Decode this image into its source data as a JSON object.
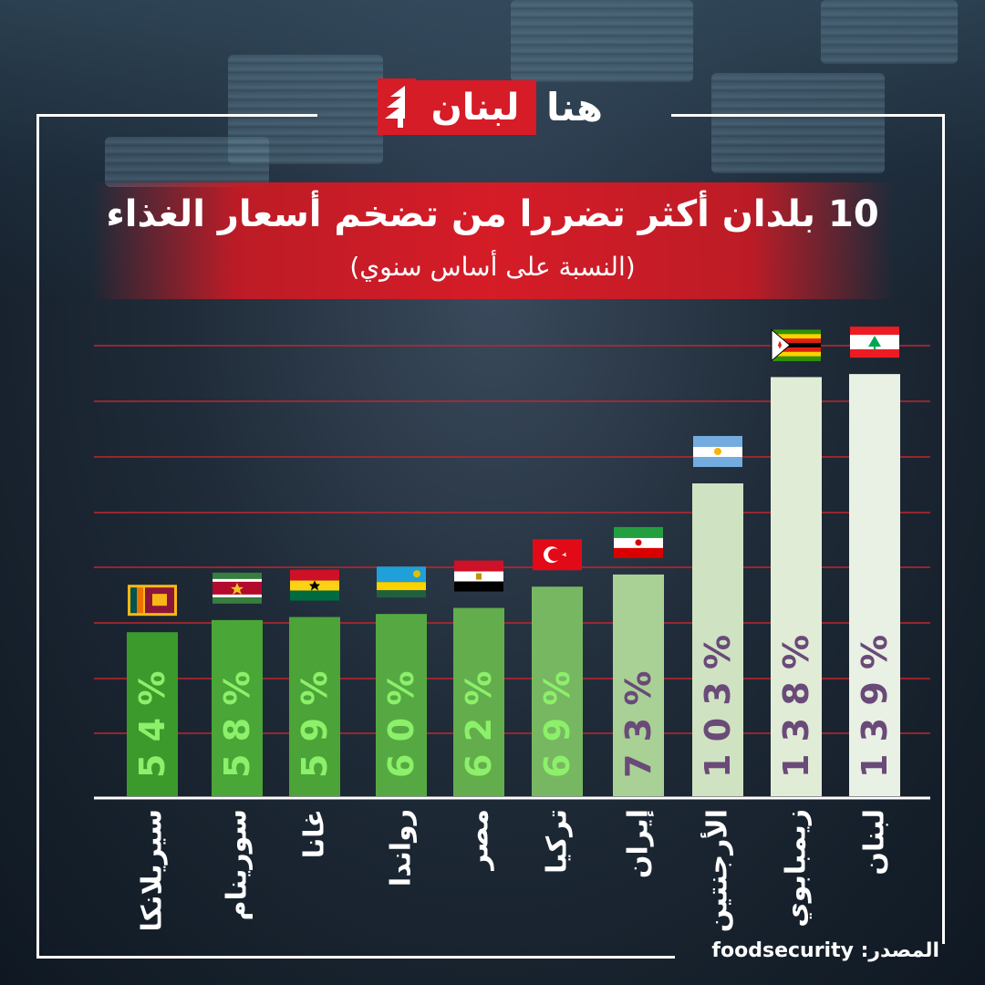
{
  "brand": {
    "word_red": "لبنان",
    "word_white": "هنا"
  },
  "header": {
    "title": "10 بلدان أكثر تضررا من تضخم أسعار الغذاء",
    "subtitle": "(النسبة على أساس سنوي)"
  },
  "source": "المصدر: foodsecurity",
  "colors": {
    "accent_red": "#d51c27",
    "gridline": "#c0262e",
    "bar_green_dark": "#3c9a2c",
    "bar_light": "#e8f0e4",
    "label_green": "#8cf06a",
    "label_purple": "#6a4a78"
  },
  "chart_data": {
    "type": "bar",
    "orientation": "vertical",
    "title": "10 بلدان أكثر تضررا من تضخم أسعار الغذاء",
    "subtitle": "(النسبة على أساس سنوي)",
    "categories": [
      "سيريلانكا",
      "سورينام",
      "غانا",
      "رواندا",
      "مصر",
      "تركيا",
      "إيران",
      "الأرجنتين",
      "زيمبابوي",
      "لبنان"
    ],
    "values": [
      54,
      58,
      59,
      60,
      62,
      69,
      73,
      103,
      138,
      139
    ],
    "data_labels": [
      "5 4 %",
      "5 8 %",
      "5 9 %",
      "6 0 %",
      "6 2 %",
      "6 9 %",
      "7 3 %",
      "1 0 3 %",
      "1 3 8 %",
      "1 3 9 %"
    ],
    "unit": "%",
    "grid": true,
    "flags": [
      "sri-lanka-flag",
      "suriname-flag",
      "ghana-flag",
      "rwanda-flag",
      "egypt-flag",
      "turkey-flag",
      "iran-flag",
      "argentina-flag",
      "zimbabwe-flag",
      "lebanon-flag"
    ]
  }
}
